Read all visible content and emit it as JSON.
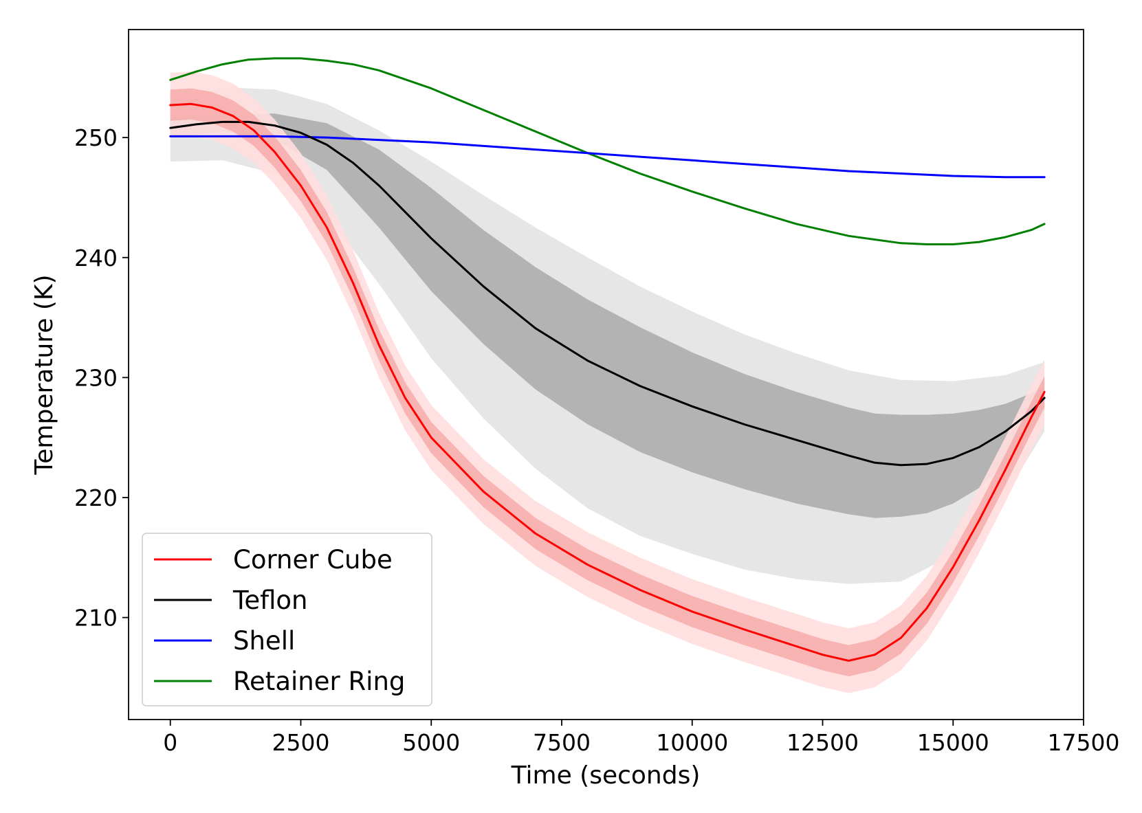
{
  "chart_data": {
    "type": "line",
    "title": "",
    "xlabel": "Time (seconds)",
    "ylabel": "Temperature (K)",
    "xlim": [
      -800,
      17500
    ],
    "ylim": [
      201.5,
      259.0
    ],
    "xticks": [
      0,
      2500,
      5000,
      7500,
      10000,
      12500,
      15000,
      17500
    ],
    "xtick_labels": [
      "0",
      "2500",
      "5000",
      "7500",
      "10000",
      "12500",
      "15000",
      "17500"
    ],
    "yticks": [
      210,
      220,
      230,
      240,
      250
    ],
    "ytick_labels": [
      "210",
      "220",
      "230",
      "240",
      "250"
    ],
    "grid": false,
    "legend_position": "lower-left",
    "series": [
      {
        "name": "Corner Cube",
        "color": "#ff0000",
        "x": [
          0,
          400,
          800,
          1200,
          1600,
          2000,
          2500,
          3000,
          3500,
          4000,
          4500,
          5000,
          6000,
          7000,
          8000,
          9000,
          10000,
          11000,
          12000,
          12500,
          13000,
          13500,
          14000,
          14500,
          15000,
          15500,
          16000,
          16500,
          16750
        ],
        "values": [
          252.7,
          252.8,
          252.5,
          251.8,
          250.6,
          248.8,
          246.0,
          242.5,
          237.9,
          232.7,
          228.3,
          225.0,
          220.5,
          217.0,
          214.4,
          212.3,
          210.5,
          209.0,
          207.6,
          206.9,
          206.4,
          206.9,
          208.3,
          210.8,
          214.2,
          218.1,
          222.3,
          226.7,
          228.8
        ],
        "band_inner": 1.3,
        "band_outer": 2.7
      },
      {
        "name": "Teflon",
        "color": "#000000",
        "x": [
          0,
          500,
          1000,
          1500,
          2000,
          2500,
          3000,
          3500,
          4000,
          4500,
          5000,
          6000,
          7000,
          8000,
          9000,
          10000,
          11000,
          12000,
          13000,
          13500,
          14000,
          14500,
          15000,
          15500,
          16000,
          16500,
          16750
        ],
        "values": [
          250.8,
          251.1,
          251.3,
          251.3,
          251.0,
          250.4,
          249.4,
          247.9,
          246.0,
          243.8,
          241.6,
          237.6,
          234.1,
          231.4,
          229.3,
          227.6,
          226.1,
          224.8,
          223.5,
          222.9,
          222.7,
          222.8,
          223.3,
          224.2,
          225.5,
          227.2,
          228.3
        ],
        "band_dark": [
          [
            0,
            251.6,
            250.0
          ],
          [
            1000,
            251.9,
            250.5
          ],
          [
            2000,
            252.0,
            249.8
          ],
          [
            3000,
            251.2,
            247.3
          ],
          [
            4000,
            249.0,
            242.5
          ],
          [
            5000,
            245.8,
            237.2
          ],
          [
            6000,
            242.3,
            232.8
          ],
          [
            7000,
            239.2,
            229.0
          ],
          [
            8000,
            236.5,
            226.1
          ],
          [
            9000,
            234.2,
            223.8
          ],
          [
            10000,
            232.1,
            222.1
          ],
          [
            11000,
            230.3,
            220.7
          ],
          [
            12000,
            228.8,
            219.5
          ],
          [
            13000,
            227.5,
            218.6
          ],
          [
            13500,
            227.0,
            218.3
          ],
          [
            14000,
            226.9,
            218.4
          ],
          [
            14500,
            226.9,
            218.7
          ],
          [
            15000,
            227.0,
            219.5
          ],
          [
            15500,
            227.3,
            220.8
          ],
          [
            16000,
            227.8,
            222.9
          ],
          [
            16500,
            228.7,
            225.6
          ],
          [
            16750,
            229.3,
            227.2
          ]
        ],
        "band_light": [
          [
            0,
            253.5,
            248.0
          ],
          [
            1000,
            254.2,
            248.1
          ],
          [
            2000,
            254.0,
            247.0
          ],
          [
            3000,
            252.8,
            243.5
          ],
          [
            4000,
            250.6,
            237.8
          ],
          [
            5000,
            248.0,
            231.6
          ],
          [
            6000,
            245.2,
            226.6
          ],
          [
            7000,
            242.5,
            222.4
          ],
          [
            8000,
            240.0,
            219.1
          ],
          [
            9000,
            237.6,
            216.8
          ],
          [
            10000,
            235.5,
            215.3
          ],
          [
            11000,
            233.6,
            214.0
          ],
          [
            12000,
            232.0,
            213.2
          ],
          [
            13000,
            230.6,
            212.8
          ],
          [
            14000,
            229.8,
            213.0
          ],
          [
            15000,
            229.7,
            215.2
          ],
          [
            16000,
            230.2,
            220.2
          ],
          [
            16750,
            231.3,
            225.5
          ]
        ]
      },
      {
        "name": "Shell",
        "color": "#0000ff",
        "x": [
          0,
          1000,
          2000,
          3000,
          4000,
          5000,
          6000,
          7000,
          8000,
          9000,
          10000,
          11000,
          12000,
          13000,
          14000,
          15000,
          16000,
          16750
        ],
        "values": [
          250.1,
          250.1,
          250.1,
          250.0,
          249.8,
          249.6,
          249.3,
          249.0,
          248.7,
          248.4,
          248.1,
          247.8,
          247.5,
          247.2,
          247.0,
          246.8,
          246.7,
          246.7
        ]
      },
      {
        "name": "Retainer Ring",
        "color": "#008000",
        "x": [
          0,
          500,
          1000,
          1500,
          2000,
          2500,
          3000,
          3500,
          4000,
          5000,
          6000,
          7000,
          8000,
          9000,
          10000,
          11000,
          12000,
          13000,
          14000,
          14500,
          15000,
          15500,
          16000,
          16500,
          16750
        ],
        "values": [
          254.8,
          255.5,
          256.1,
          256.5,
          256.6,
          256.6,
          256.4,
          256.1,
          255.6,
          254.1,
          252.3,
          250.5,
          248.7,
          247.0,
          245.5,
          244.1,
          242.8,
          241.8,
          241.2,
          241.1,
          241.1,
          241.3,
          241.7,
          242.3,
          242.8
        ]
      }
    ]
  },
  "legend": {
    "items": [
      {
        "label": "Corner Cube",
        "color": "#ff0000"
      },
      {
        "label": "Teflon",
        "color": "#000000"
      },
      {
        "label": "Shell",
        "color": "#0000ff"
      },
      {
        "label": "Retainer Ring",
        "color": "#008000"
      }
    ]
  }
}
